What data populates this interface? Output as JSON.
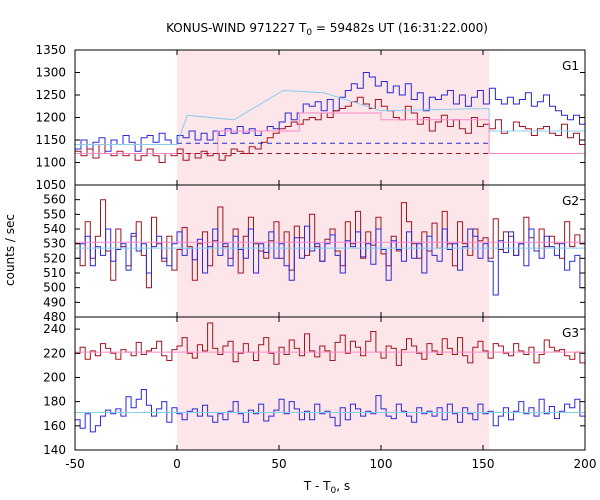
{
  "chart_data": {
    "type": "line",
    "title_main": "KONUS-WIND 971227 T",
    "title_sub": "0",
    "title_rest": " = 59482s UT (16:31:22.000)",
    "xlabel_main": "T - T",
    "xlabel_sub": "0",
    "xlabel_rest": ", s",
    "ylabel": "counts / sec",
    "xlim": [
      -50,
      200
    ],
    "xticks": [
      "-50",
      "0",
      "50",
      "100",
      "150",
      "200"
    ],
    "shaded_interval": [
      0,
      153
    ],
    "colors": {
      "red": "#a0141e",
      "blue": "#2a2ad6",
      "pink": "#ff88cc",
      "cyan": "#88ccee",
      "shade": "#fde6ea"
    },
    "panels": [
      {
        "label": "G1",
        "ylim": [
          1050,
          1350
        ],
        "yticks": [
          1050,
          1100,
          1150,
          1200,
          1250,
          1300,
          1350
        ],
        "series": [
          {
            "color": "blue",
            "step": true,
            "x0": -50,
            "dx": 2.944,
            "values": [
              1130,
              1150,
              1120,
              1145,
              1155,
              1125,
              1150,
              1140,
              1160,
              1145,
              1125,
              1155,
              1160,
              1145,
              1165,
              1150,
              1140,
              1160,
              1155,
              1170,
              1150,
              1165,
              1150,
              1170,
              1160,
              1175,
              1165,
              1180,
              1165,
              1175,
              1160,
              1170,
              1180,
              1175,
              1190,
              1210,
              1195,
              1210,
              1230,
              1225,
              1235,
              1215,
              1240,
              1215,
              1245,
              1260,
              1275,
              1265,
              1300,
              1290,
              1270,
              1280,
              1255,
              1270,
              1250,
              1275,
              1240,
              1255,
              1215,
              1245,
              1240,
              1250,
              1260,
              1230,
              1250,
              1225,
              1245,
              1260,
              1230,
              1265,
              1240,
              1230,
              1245,
              1230,
              1240,
              1255,
              1225,
              1235,
              1250,
              1225,
              1215,
              1205,
              1195,
              1205,
              1185,
              1180,
              1175,
              1165,
              1180,
              1160,
              1150
            ]
          },
          {
            "color": "red",
            "step": true,
            "x0": -50,
            "dx": 2.944,
            "values": [
              1125,
              1115,
              1130,
              1110,
              1140,
              1120,
              1115,
              1125,
              1115,
              1120,
              1105,
              1115,
              1130,
              1115,
              1100,
              1120,
              1115,
              1130,
              1105,
              1120,
              1110,
              1125,
              1115,
              1120,
              1105,
              1115,
              1130,
              1125,
              1120,
              1135,
              1130,
              1145,
              1155,
              1165,
              1175,
              1180,
              1190,
              1185,
              1195,
              1200,
              1195,
              1210,
              1200,
              1215,
              1220,
              1225,
              1235,
              1245,
              1230,
              1220,
              1240,
              1225,
              1215,
              1200,
              1195,
              1225,
              1210,
              1185,
              1200,
              1170,
              1190,
              1205,
              1180,
              1195,
              1175,
              1165,
              1200,
              1180,
              1185,
              1175,
              1195,
              1165,
              1170,
              1190,
              1180,
              1175,
              1160,
              1175,
              1180,
              1165,
              1160,
              1185,
              1155,
              1165,
              1140,
              1150,
              1135,
              1145,
              1125,
              1140,
              1135
            ]
          },
          {
            "color": "cyan",
            "step": true,
            "x": [
              -50,
              0,
              5,
              5,
              28,
              28,
              52,
              52,
              72,
              72,
              100,
              100,
              153,
              153,
              200
            ],
            "values": [
              1140,
              1140,
              1205,
              1205,
              1195,
              1195,
              1260,
              1260,
              1255,
              1255,
              1215,
              1215,
              1220,
              1170,
              1170
            ]
          },
          {
            "color": "pink",
            "step": true,
            "x": [
              -50,
              20,
              20,
              60,
              60,
              100,
              100,
              153,
              153,
              200
            ],
            "values": [
              1120,
              1120,
              1170,
              1170,
              1210,
              1210,
              1195,
              1195,
              1120,
              1120
            ]
          },
          {
            "color": "blue",
            "dashed": true,
            "x": [
              0,
              153
            ],
            "values": [
              1143,
              1143
            ]
          },
          {
            "color": "red",
            "dashed": true,
            "x": [
              0,
              153
            ],
            "values": [
              1120,
              1120
            ]
          }
        ]
      },
      {
        "label": "G2",
        "ylim": [
          480,
          570
        ],
        "yticks": [
          480,
          490,
          500,
          510,
          520,
          530,
          540,
          550,
          560
        ],
        "series": [
          {
            "color": "red",
            "step": true,
            "x0": -50,
            "dx": 2.5,
            "values": [
              530,
              515,
              545,
              520,
              535,
              560,
              525,
              505,
              540,
              528,
              515,
              535,
              545,
              522,
              500,
              548,
              530,
              518,
              535,
              512,
              526,
              541,
              528,
              505,
              530,
              538,
              515,
              532,
              555,
              528,
              520,
              540,
              510,
              535,
              548,
              530,
              525,
              520,
              532,
              545,
              520,
              538,
              512,
              542,
              534,
              522,
              550,
              528,
              518,
              533,
              540,
              525,
              515,
              545,
              530,
              552,
              520,
              538,
              529,
              548,
              523,
              515,
              535,
              525,
              558,
              545,
              530,
              520,
              538,
              525,
              544,
              527,
              552,
              530,
              515,
              545,
              530,
              522,
              540,
              532,
              534,
              520,
              547,
              526,
              538,
              535,
              522,
              530,
              548,
              534,
              525,
              540,
              528,
              535,
              530,
              520,
              545,
              528,
              536,
              530
            ]
          },
          {
            "color": "blue",
            "step": true,
            "x0": -50,
            "dx": 2.5,
            "values": [
              520,
              530,
              535,
              515,
              528,
              522,
              540,
              518,
              526,
              530,
              512,
              537,
              525,
              530,
              510,
              528,
              535,
              520,
              515,
              530,
              538,
              522,
              527,
              519,
              533,
              510,
              528,
              540,
              522,
              530,
              515,
              535,
              526,
              520,
              540,
              510,
              530,
              524,
              538,
              520,
              530,
              515,
              505,
              534,
              520,
              542,
              525,
              530,
              518,
              530,
              536,
              522,
              510,
              532,
              528,
              538,
              521,
              530,
              516,
              540,
              526,
              505,
              532,
              526,
              518,
              538,
              520,
              530,
              510,
              535,
              522,
              518,
              540,
              526,
              530,
              512,
              528,
              540,
              535,
              520,
              530,
              518,
              495,
              532,
              524,
              538,
              522,
              530,
              515,
              540,
              525,
              520,
              535,
              528,
              522,
              530,
              512,
              518,
              522,
              500
            ]
          },
          {
            "color": "pink",
            "x": [
              -50,
              200
            ],
            "values": [
              531,
              531
            ]
          },
          {
            "color": "cyan",
            "x": [
              -50,
              200
            ],
            "values": [
              527,
              527
            ]
          }
        ]
      },
      {
        "label": "G3",
        "ylim": [
          140,
          250
        ],
        "yticks": [
          140,
          160,
          180,
          200,
          220,
          240
        ],
        "series": [
          {
            "color": "red",
            "step": true,
            "x0": -50,
            "dx": 2.5,
            "values": [
              220,
              225,
              215,
              222,
              218,
              228,
              224,
              220,
              215,
              223,
              221,
              218,
              229,
              219,
              222,
              224,
              230,
              218,
              214,
              223,
              226,
              233,
              220,
              216,
              227,
              222,
              245,
              224,
              219,
              226,
              230,
              213,
              220,
              228,
              221,
              214,
              227,
              233,
              220,
              211,
              225,
              219,
              231,
              224,
              218,
              236,
              222,
              217,
              226,
              222,
              214,
              229,
              235,
              220,
              230,
              225,
              218,
              230,
              238,
              221,
              216,
              226,
              224,
              210,
              223,
              232,
              226,
              220,
              215,
              228,
              222,
              219,
              232,
              224,
              219,
              233,
              218,
              212,
              225,
              230,
              222,
              216,
              228,
              226,
              220,
              218,
              228,
              222,
              219,
              225,
              212,
              219,
              231,
              225,
              222,
              223,
              218,
              215,
              221,
              212
            ]
          },
          {
            "color": "blue",
            "step": true,
            "x0": -50,
            "dx": 2.5,
            "values": [
              165,
              158,
              170,
              155,
              160,
              168,
              173,
              170,
              174,
              168,
              184,
              175,
              182,
              190,
              177,
              168,
              174,
              180,
              163,
              175,
              170,
              165,
              172,
              174,
              168,
              177,
              168,
              163,
              170,
              165,
              172,
              180,
              170,
              163,
              173,
              170,
              178,
              164,
              168,
              173,
              182,
              170,
              180,
              174,
              165,
              172,
              165,
              178,
              170,
              172,
              167,
              160,
              175,
              165,
              178,
              174,
              168,
              172,
              170,
              185,
              174,
              168,
              166,
              178,
              172,
              168,
              163,
              175,
              170,
              172,
              168,
              175,
              165,
              178,
              170,
              163,
              175,
              170,
              165,
              178,
              170,
              172,
              160,
              168,
              175,
              165,
              172,
              180,
              170,
              175,
              168,
              182,
              170,
              176,
              166,
              172,
              178,
              175,
              182,
              168
            ]
          },
          {
            "color": "pink",
            "x": [
              -50,
              200
            ],
            "values": [
              221,
              221
            ]
          },
          {
            "color": "cyan",
            "x": [
              -50,
              200
            ],
            "values": [
              171,
              171
            ]
          }
        ]
      }
    ]
  }
}
